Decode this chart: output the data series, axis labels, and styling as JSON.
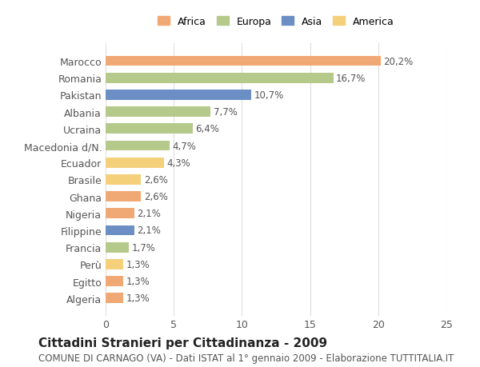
{
  "countries": [
    "Algeria",
    "Egitto",
    "Perù",
    "Francia",
    "Filippine",
    "Nigeria",
    "Ghana",
    "Brasile",
    "Ecuador",
    "Macedonia d/N.",
    "Ucraina",
    "Albania",
    "Pakistan",
    "Romania",
    "Marocco"
  ],
  "values": [
    1.3,
    1.3,
    1.3,
    1.7,
    2.1,
    2.1,
    2.6,
    2.6,
    4.3,
    4.7,
    6.4,
    7.7,
    10.7,
    16.7,
    20.2
  ],
  "continents": [
    "Africa",
    "Africa",
    "America",
    "Europa",
    "Asia",
    "Africa",
    "Africa",
    "America",
    "America",
    "Europa",
    "Europa",
    "Europa",
    "Asia",
    "Europa",
    "Africa"
  ],
  "continent_colors": {
    "Africa": "#F0A875",
    "Europa": "#B5C98A",
    "Asia": "#6B8EC4",
    "America": "#F5D07A"
  },
  "legend_order": [
    "Africa",
    "Europa",
    "Asia",
    "America"
  ],
  "title": "Cittadini Stranieri per Cittadinanza - 2009",
  "subtitle": "COMUNE DI CARNAGO (VA) - Dati ISTAT al 1° gennaio 2009 - Elaborazione TUTTITALIA.IT",
  "xlim": [
    0,
    25
  ],
  "xticks": [
    0,
    5,
    10,
    15,
    20,
    25
  ],
  "bg_color": "#FFFFFF",
  "grid_color": "#DDDDDD",
  "label_color": "#555555",
  "bar_height": 0.6,
  "title_fontsize": 11,
  "subtitle_fontsize": 8.5,
  "tick_fontsize": 9,
  "value_fontsize": 8.5
}
